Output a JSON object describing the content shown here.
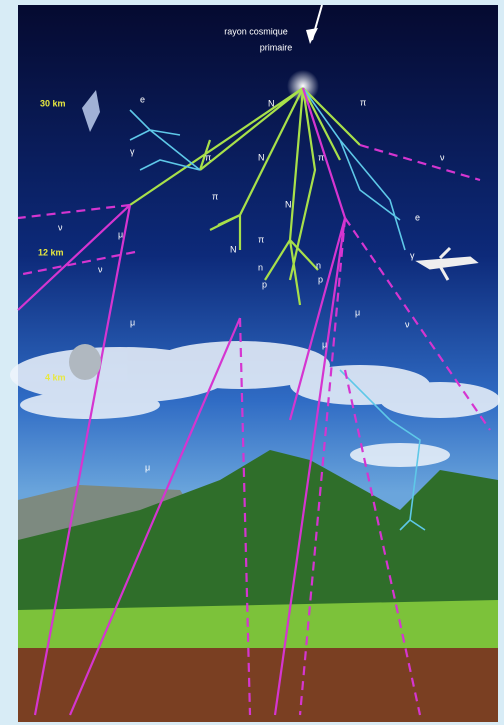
{
  "caption": {
    "line1": "rayon cosmique",
    "line2": "primaire"
  },
  "altitudes": [
    "30 km",
    "12 km",
    "4 km"
  ],
  "particles": [
    "e",
    "γ",
    "π",
    "N",
    "N",
    "π",
    "N",
    "N",
    "π",
    "π",
    "π",
    "ν",
    "e",
    "γ",
    "ν",
    "μ",
    "ν",
    "μ",
    "n",
    "p",
    "n",
    "p",
    "μ",
    "μ",
    "ν",
    "μ"
  ]
}
